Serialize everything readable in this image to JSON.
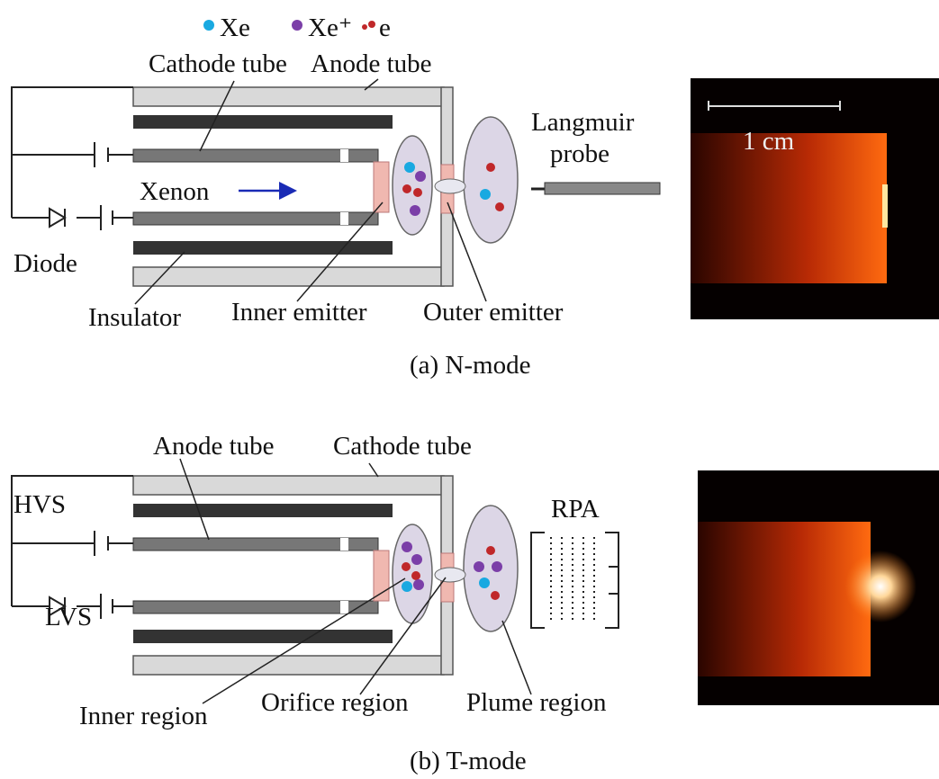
{
  "legend": {
    "items": [
      "Xe",
      "Xe⁺",
      "e"
    ]
  },
  "panel_a": {
    "cathode_tube": "Cathode tube",
    "anode_tube": "Anode tube",
    "xenon": "Xenon",
    "diode": "Diode",
    "insulator": "Insulator",
    "inner_emitter": "Inner emitter",
    "outer_emitter": "Outer emitter",
    "probe": [
      "Langmuir",
      "probe"
    ],
    "scale": "1 cm",
    "caption": "(a) N-mode"
  },
  "panel_b": {
    "anode_tube": "Anode tube",
    "cathode_tube": "Cathode tube",
    "hvs": "HVS",
    "lvs": "LVS",
    "rpa": "RPA",
    "inner_region": "Inner region",
    "orifice_region": "Orifice region",
    "plume_region": "Plume region",
    "caption": "(b) T-mode"
  }
}
